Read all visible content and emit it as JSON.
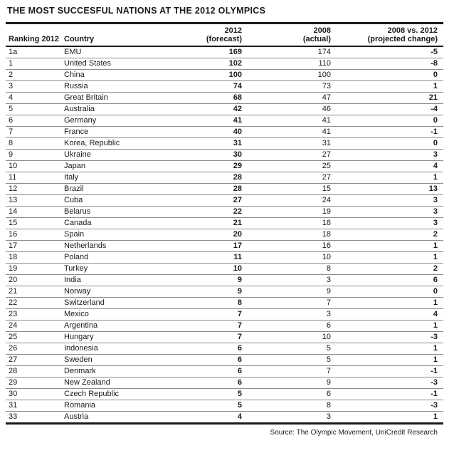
{
  "chart_data": {
    "type": "table",
    "title": "THE MOST SUCCESFUL NATIONS AT THE 2012 OLYMPICS",
    "source": "Source: The Olympic Movement, UniCredit Research",
    "columns": [
      {
        "line1": "",
        "line2": "Ranking 2012",
        "align": "left"
      },
      {
        "line1": "",
        "line2": "Country",
        "align": "left"
      },
      {
        "line1": "2012",
        "line2": "(forecast)",
        "align": "right"
      },
      {
        "line1": "2008",
        "line2": "(actual)",
        "align": "right"
      },
      {
        "line1": "2008 vs. 2012",
        "line2": "(projected change)",
        "align": "right"
      }
    ],
    "rows": [
      [
        "1a",
        "EMU",
        "169",
        "174",
        "-5"
      ],
      [
        "1",
        "United States",
        "102",
        "110",
        "-8"
      ],
      [
        "2",
        "China",
        "100",
        "100",
        "0"
      ],
      [
        "3",
        "Russia",
        "74",
        "73",
        "1"
      ],
      [
        "4",
        "Great Britain",
        "68",
        "47",
        "21"
      ],
      [
        "5",
        "Australia",
        "42",
        "46",
        "-4"
      ],
      [
        "6",
        "Germany",
        "41",
        "41",
        "0"
      ],
      [
        "7",
        "France",
        "40",
        "41",
        "-1"
      ],
      [
        "8",
        "Korea, Republic",
        "31",
        "31",
        "0"
      ],
      [
        "9",
        "Ukraine",
        "30",
        "27",
        "3"
      ],
      [
        "10",
        "Japan",
        "29",
        "25",
        "4"
      ],
      [
        "11",
        "Italy",
        "28",
        "27",
        "1"
      ],
      [
        "12",
        "Brazil",
        "28",
        "15",
        "13"
      ],
      [
        "13",
        "Cuba",
        "27",
        "24",
        "3"
      ],
      [
        "14",
        "Belarus",
        "22",
        "19",
        "3"
      ],
      [
        "15",
        "Canada",
        "21",
        "18",
        "3"
      ],
      [
        "16",
        "Spain",
        "20",
        "18",
        "2"
      ],
      [
        "17",
        "Netherlands",
        "17",
        "16",
        "1"
      ],
      [
        "18",
        "Poland",
        "11",
        "10",
        "1"
      ],
      [
        "19",
        "Turkey",
        "10",
        "8",
        "2"
      ],
      [
        "20",
        "India",
        "9",
        "3",
        "6"
      ],
      [
        "21",
        "Norway",
        "9",
        "9",
        "0"
      ],
      [
        "22",
        "Switzerland",
        "8",
        "7",
        "1"
      ],
      [
        "23",
        "Mexico",
        "7",
        "3",
        "4"
      ],
      [
        "24",
        "Argentina",
        "7",
        "6",
        "1"
      ],
      [
        "25",
        "Hungary",
        "7",
        "10",
        "-3"
      ],
      [
        "26",
        "Indonesia",
        "6",
        "5",
        "1"
      ],
      [
        "27",
        "Sweden",
        "6",
        "5",
        "1"
      ],
      [
        "28",
        "Denmark",
        "6",
        "7",
        "-1"
      ],
      [
        "29",
        "New Zealand",
        "6",
        "9",
        "-3"
      ],
      [
        "30",
        "Czech Republic",
        "5",
        "6",
        "-1"
      ],
      [
        "31",
        "Romania",
        "5",
        "8",
        "-3"
      ],
      [
        "33",
        "Austria",
        "4",
        "3",
        "1"
      ]
    ]
  }
}
